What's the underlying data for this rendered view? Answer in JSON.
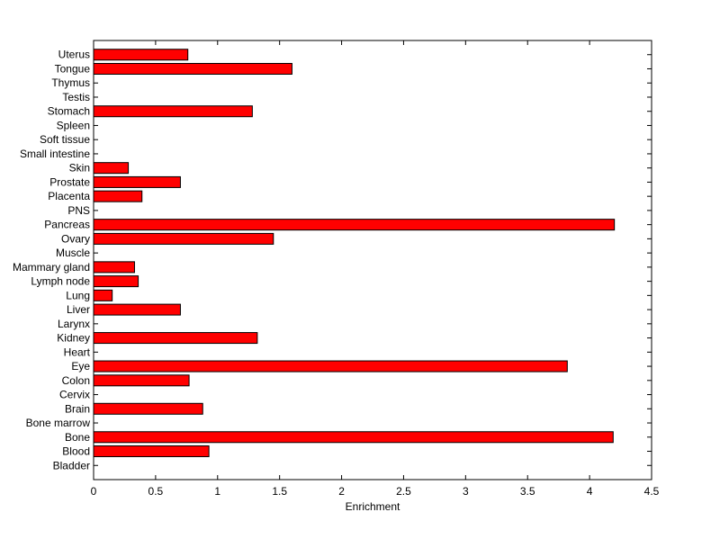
{
  "chart_data": {
    "type": "bar",
    "orientation": "horizontal",
    "categories": [
      "Bladder",
      "Blood",
      "Bone",
      "Bone marrow",
      "Brain",
      "Cervix",
      "Colon",
      "Eye",
      "Heart",
      "Kidney",
      "Larynx",
      "Liver",
      "Lung",
      "Lymph node",
      "Mammary gland",
      "Muscle",
      "Ovary",
      "Pancreas",
      "PNS",
      "Placenta",
      "Prostate",
      "Skin",
      "Small intestine",
      "Soft tissue",
      "Spleen",
      "Stomach",
      "Testis",
      "Thymus",
      "Tongue",
      "Uterus"
    ],
    "values": [
      0,
      0.93,
      4.19,
      0,
      0.88,
      0,
      0.77,
      3.82,
      0,
      1.32,
      0,
      0.7,
      0.15,
      0.36,
      0.33,
      0,
      1.45,
      4.2,
      0,
      0.39,
      0.7,
      0.28,
      0,
      0,
      0,
      1.28,
      0,
      0,
      1.6,
      0.76
    ],
    "xlabel": "Enrichment",
    "ylabel": "",
    "title": "",
    "xlim": [
      0,
      4.5
    ],
    "xticks": [
      0,
      0.5,
      1,
      1.5,
      2,
      2.5,
      3,
      3.5,
      4,
      4.5
    ],
    "xtick_labels": [
      "0",
      "0.5",
      "1",
      "1.5",
      "2",
      "2.5",
      "3",
      "3.5",
      "4",
      "4.5"
    ],
    "bar_color": "#ff0000",
    "bar_edge_color": "#000000",
    "grid": false,
    "legend": "none"
  }
}
